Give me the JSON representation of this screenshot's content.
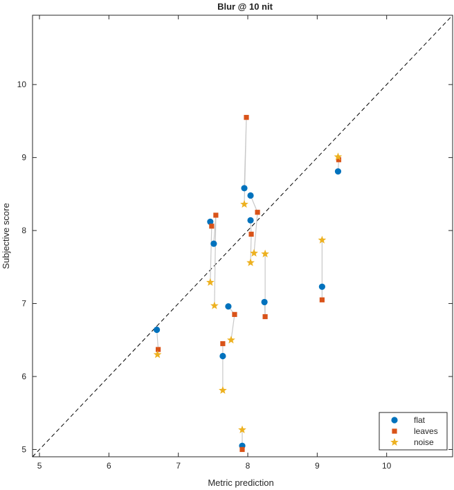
{
  "chart_data": {
    "type": "scatter",
    "title": "Blur @ 10 nit",
    "xlabel": "Metric prediction",
    "ylabel": "Subjective score",
    "xlim": [
      4.9,
      10.95
    ],
    "ylim": [
      4.9,
      10.95
    ],
    "xticks": [
      "5",
      "6",
      "7",
      "8",
      "9",
      "10"
    ],
    "yticks": [
      "5",
      "6",
      "7",
      "8",
      "9",
      "10"
    ],
    "grid": false,
    "legend_position": "bottom-right",
    "reference_line": "y = x (dashed)",
    "series": [
      {
        "name": "flat",
        "marker": "circle",
        "color": "#0072BD",
        "points": [
          [
            7.92,
            5.05
          ],
          [
            8.24,
            7.02
          ],
          [
            8.04,
            8.14
          ],
          [
            8.04,
            8.48
          ],
          [
            7.95,
            8.58
          ],
          [
            7.46,
            8.12
          ],
          [
            7.51,
            7.82
          ],
          [
            7.72,
            6.96
          ],
          [
            7.64,
            6.28
          ],
          [
            6.69,
            6.64
          ],
          [
            9.07,
            7.23
          ],
          [
            9.3,
            8.81
          ]
        ]
      },
      {
        "name": "leaves",
        "marker": "square",
        "color": "#D95319",
        "points": [
          [
            7.92,
            5.0
          ],
          [
            8.25,
            6.82
          ],
          [
            8.05,
            7.95
          ],
          [
            8.14,
            8.25
          ],
          [
            7.98,
            9.55
          ],
          [
            7.48,
            8.06
          ],
          [
            7.54,
            8.21
          ],
          [
            7.81,
            6.85
          ],
          [
            7.64,
            6.45
          ],
          [
            6.71,
            6.37
          ],
          [
            9.07,
            7.05
          ],
          [
            9.31,
            8.97
          ]
        ]
      },
      {
        "name": "noise",
        "marker": "star",
        "color": "#EDB120",
        "points": [
          [
            7.92,
            5.27
          ],
          [
            8.25,
            7.68
          ],
          [
            8.04,
            7.56
          ],
          [
            8.09,
            7.69
          ],
          [
            7.95,
            8.36
          ],
          [
            7.46,
            7.29
          ],
          [
            7.52,
            6.97
          ],
          [
            7.76,
            6.5
          ],
          [
            7.64,
            5.81
          ],
          [
            6.7,
            6.3
          ],
          [
            9.07,
            7.87
          ],
          [
            9.3,
            9.01
          ]
        ]
      }
    ]
  }
}
